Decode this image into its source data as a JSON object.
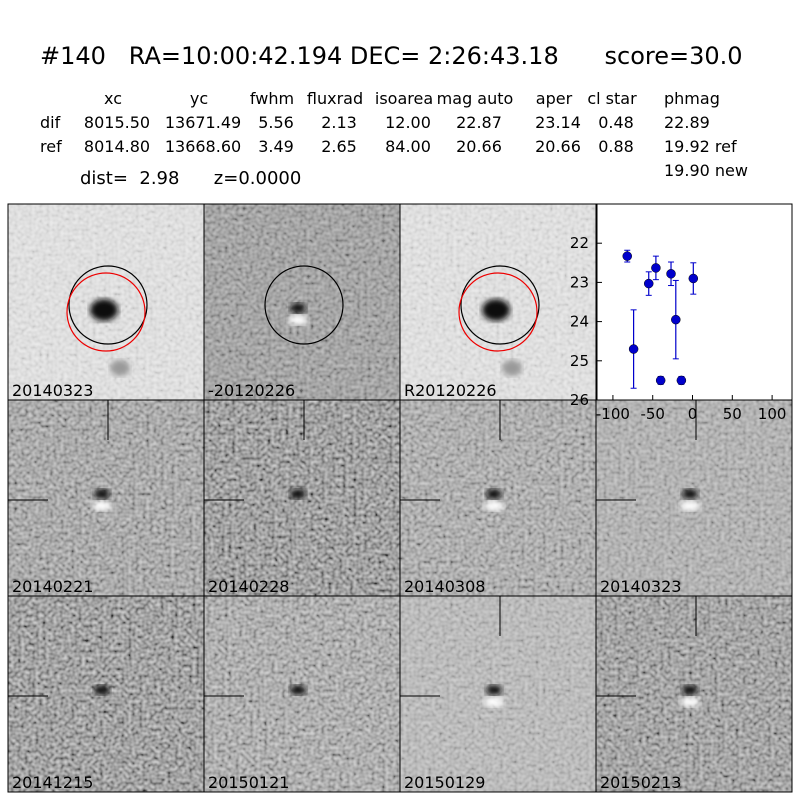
{
  "header": {
    "title": "#140   RA=10:00:42.194 DEC= 2:26:43.18      score=30.0"
  },
  "table": {
    "columns": [
      "xc",
      "yc",
      "fwhm",
      "fluxrad",
      "isoarea",
      "mag auto",
      "aper",
      "cl star",
      "phmag"
    ],
    "rows": [
      {
        "label": "dif",
        "cells": [
          "8015.50",
          "13671.49",
          "5.56",
          "2.13",
          "12.00",
          "22.87",
          "23.14",
          "0.48",
          "22.89"
        ]
      },
      {
        "label": "ref",
        "cells": [
          "8014.80",
          "13668.60",
          "3.49",
          "2.65",
          "84.00",
          "20.66",
          "20.66",
          "0.88",
          "19.92 ref"
        ]
      }
    ],
    "extra": "19.90 new"
  },
  "summary": "dist=  2.98      z=0.0000",
  "panels": [
    {
      "label": "20140323"
    },
    {
      "label": "-20120226"
    },
    {
      "label": "R20120226"
    },
    {
      "label": "20140221"
    },
    {
      "label": "20140228"
    },
    {
      "label": "20140308"
    },
    {
      "label": "20140323",
      "color": "#ff0000"
    },
    {
      "label": "20141215"
    },
    {
      "label": "20150121"
    },
    {
      "label": "20150129"
    },
    {
      "label": "20150213"
    }
  ],
  "chart_data": {
    "type": "scatter",
    "color": "#0000cc",
    "x": [
      -82,
      -74,
      -55,
      -46,
      -40,
      -27,
      -21,
      -14,
      1
    ],
    "values": [
      22.33,
      24.7,
      23.03,
      22.63,
      25.5,
      22.78,
      23.95,
      25.5,
      22.9
    ],
    "errors": [
      0.15,
      1.0,
      0.3,
      0.3,
      0.1,
      0.3,
      1.0,
      0.1,
      0.4
    ],
    "xlim": [
      -120,
      125
    ],
    "ylim": [
      26,
      21
    ],
    "xticks": [
      -100,
      -50,
      0,
      50,
      100
    ],
    "yticks": [
      22,
      23,
      24,
      25,
      26
    ]
  }
}
